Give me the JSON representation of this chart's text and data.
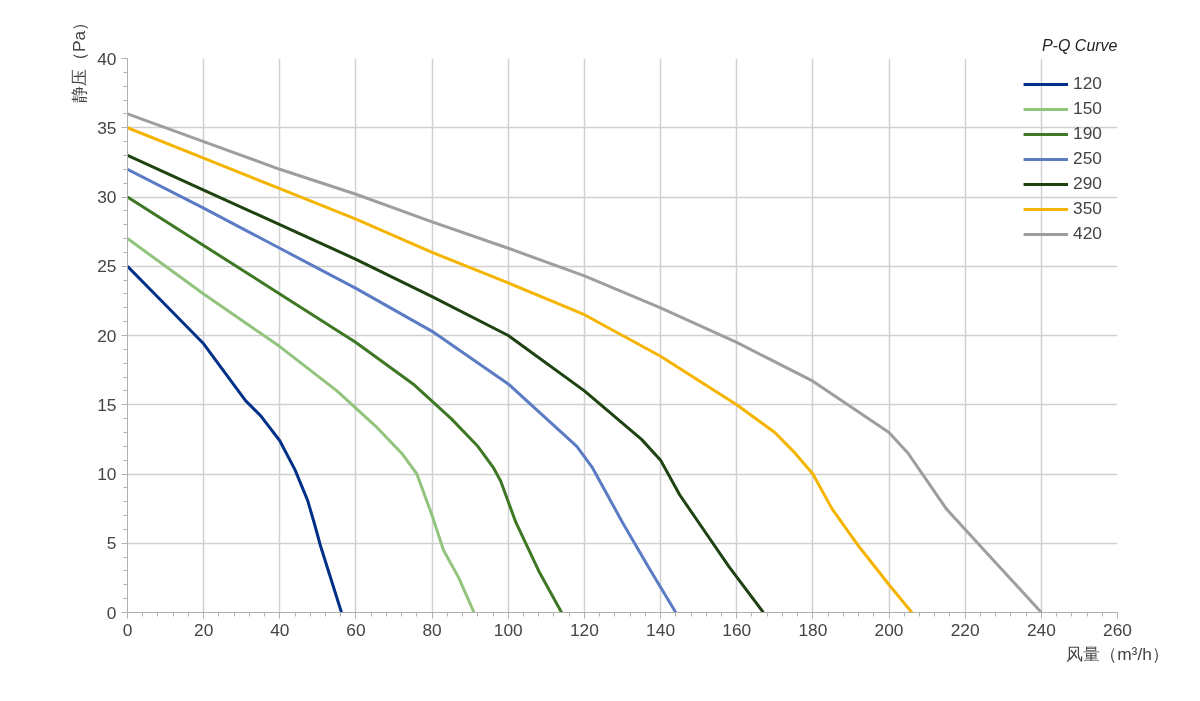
{
  "chart_data": {
    "type": "line",
    "title": "P-Q Curve",
    "xlabel": "风量（m³/h）",
    "ylabel": "静压（Pa）",
    "xlim": [
      0,
      260
    ],
    "xticks": [
      0,
      20,
      40,
      60,
      80,
      100,
      120,
      140,
      160,
      180,
      200,
      220,
      240,
      260
    ],
    "ylim": [
      0,
      40
    ],
    "yticks": [
      0,
      5,
      10,
      15,
      20,
      25,
      30,
      35,
      40
    ],
    "grid": true,
    "legend": "top right",
    "marker": "none",
    "line_style": "solid",
    "series": [
      {
        "name": "120",
        "color": "#003087",
        "x": [
          0,
          10,
          20,
          31,
          35,
          40,
          44,
          47.3,
          49,
          50.7,
          53,
          56.2
        ],
        "values": [
          25,
          22.2,
          19.4,
          15.3,
          14.2,
          12.4,
          10.3,
          8.1,
          6.5,
          4.8,
          2.8,
          0
        ]
      },
      {
        "name": "150",
        "color": "#92c47d",
        "x": [
          0,
          20,
          40,
          55,
          65,
          72,
          76,
          78,
          80,
          83,
          87,
          91
        ],
        "values": [
          27,
          23,
          19.2,
          16,
          13.5,
          11.5,
          10,
          8.5,
          7,
          4.5,
          2.5,
          0
        ]
      },
      {
        "name": "190",
        "color": "#3f7824",
        "x": [
          0,
          20,
          40,
          60,
          75,
          85,
          92,
          96,
          98,
          100,
          102,
          108,
          114
        ],
        "values": [
          30,
          26.5,
          23,
          19.5,
          16.5,
          14,
          12,
          10.5,
          9.5,
          8,
          6.5,
          3,
          0
        ]
      },
      {
        "name": "250",
        "color": "#5b7cc4",
        "x": [
          0,
          20,
          40,
          60,
          80,
          100,
          110,
          118,
          122,
          126,
          130,
          137,
          144
        ],
        "values": [
          32,
          29.2,
          26.3,
          23.4,
          20.3,
          16.5,
          14,
          12,
          10.5,
          8.5,
          6.5,
          3.2,
          0
        ]
      },
      {
        "name": "290",
        "color": "#1e4210",
        "x": [
          0,
          20,
          40,
          60,
          80,
          100,
          120,
          135,
          140,
          145,
          150,
          158,
          167
        ],
        "values": [
          33,
          30.5,
          28,
          25.5,
          22.8,
          20,
          16,
          12.5,
          11,
          8.5,
          6.5,
          3.3,
          0
        ]
      },
      {
        "name": "350",
        "color": "#f5b400",
        "x": [
          0,
          20,
          40,
          60,
          80,
          100,
          120,
          140,
          160,
          170,
          175,
          180,
          185,
          192,
          200,
          206
        ],
        "values": [
          35,
          32.8,
          30.6,
          28.4,
          26,
          23.8,
          21.5,
          18.5,
          15,
          13,
          11.6,
          10,
          7.5,
          4.8,
          2,
          0
        ]
      },
      {
        "name": "420",
        "color": "#9e9e9e",
        "x": [
          0,
          20,
          40,
          60,
          80,
          100,
          120,
          140,
          160,
          180,
          200,
          205,
          210,
          215,
          220,
          230,
          240
        ],
        "values": [
          36,
          34,
          32,
          30.2,
          28.2,
          26.3,
          24.3,
          22,
          19.5,
          16.7,
          13,
          11.5,
          9.5,
          7.5,
          6,
          3,
          0
        ]
      }
    ]
  }
}
